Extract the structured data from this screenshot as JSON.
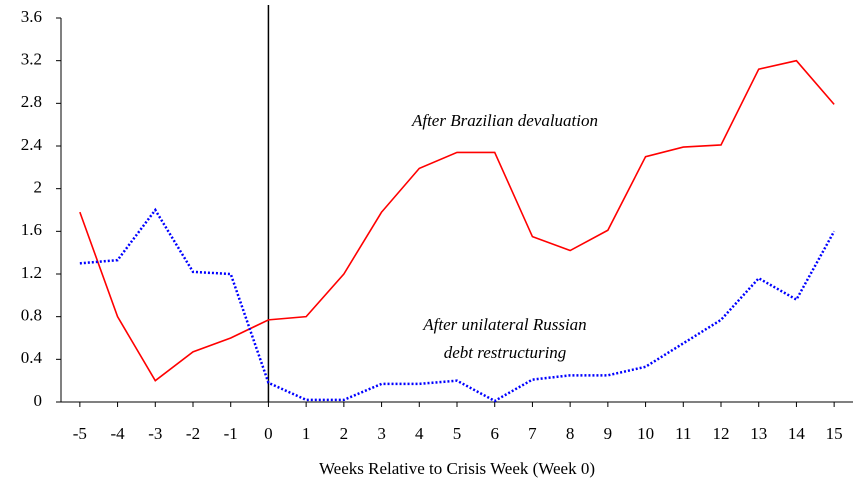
{
  "chart_data": {
    "type": "line",
    "xlabel": "Weeks Relative to Crisis Week (Week 0)",
    "x": [
      -5,
      -4,
      -3,
      -2,
      -1,
      0,
      1,
      2,
      3,
      4,
      5,
      6,
      7,
      8,
      9,
      10,
      11,
      12,
      13,
      14,
      15
    ],
    "series": [
      {
        "color": "#ff0000",
        "style": "solid",
        "values": [
          1.78,
          0.8,
          0.2,
          0.47,
          0.6,
          0.77,
          0.8,
          1.2,
          1.78,
          2.19,
          2.34,
          2.34,
          1.55,
          1.42,
          1.61,
          2.3,
          2.39,
          2.41,
          3.12,
          3.2,
          2.79
        ]
      },
      {
        "color": "#0000ff",
        "style": "dotted",
        "values": [
          1.3,
          1.33,
          1.8,
          1.22,
          1.2,
          0.18,
          0.02,
          0.02,
          0.17,
          0.17,
          0.2,
          0.01,
          0.21,
          0.25,
          0.25,
          0.33,
          0.55,
          0.77,
          1.16,
          0.96,
          1.6
        ]
      }
    ],
    "annotations": [
      "After Brazilian devaluation",
      "After unilateral Russian",
      "debt restructuring"
    ],
    "vline": 0,
    "xlim": [
      -5.5,
      15.5
    ],
    "xticks": [
      -5,
      -4,
      -3,
      -2,
      -1,
      0,
      1,
      2,
      3,
      4,
      5,
      6,
      7,
      8,
      9,
      10,
      11,
      12,
      13,
      14,
      15
    ],
    "ylim": [
      0,
      3.6
    ],
    "yticks": [
      0,
      0.4,
      0.8,
      1.2,
      1.6,
      2,
      2.4,
      2.8,
      3.2,
      3.6
    ],
    "grid": false
  }
}
